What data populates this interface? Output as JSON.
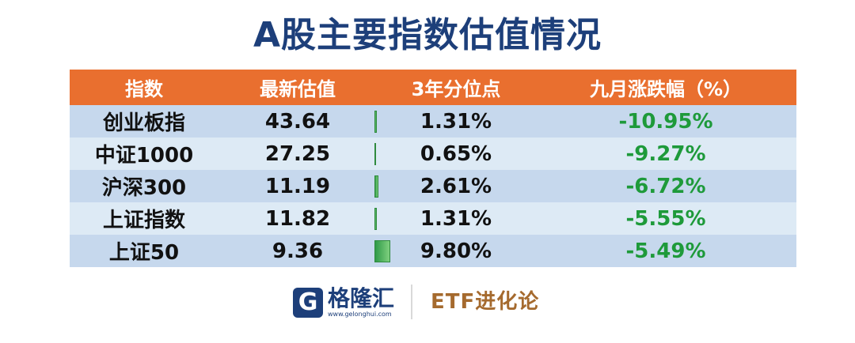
{
  "title": "A股主要指数估值情况",
  "table": {
    "headers": [
      "指数",
      "最新估值",
      "3年分位点",
      "九月涨跌幅（%）"
    ],
    "rows": [
      {
        "name": "创业板指",
        "valuation": "43.64",
        "percentile": "1.31%",
        "percentile_value": 1.31,
        "change": "-10.95%"
      },
      {
        "name": "中证1000",
        "valuation": "27.25",
        "percentile": "0.65%",
        "percentile_value": 0.65,
        "change": "-9.27%"
      },
      {
        "name": "沪深300",
        "valuation": "11.19",
        "percentile": "2.61%",
        "percentile_value": 2.61,
        "change": "-6.72%"
      },
      {
        "name": "上证指数",
        "valuation": "11.82",
        "percentile": "1.31%",
        "percentile_value": 1.31,
        "change": "-5.55%"
      },
      {
        "name": "上证50",
        "valuation": "9.36",
        "percentile": "9.80%",
        "percentile_value": 9.8,
        "change": "-5.49%"
      }
    ]
  },
  "colors": {
    "title": "#1d3f7a",
    "header_bg": "#e96f2f",
    "row_dark": "#c6d8ed",
    "row_light": "#ddeaf5",
    "negative": "#1e9a3a"
  },
  "footer": {
    "logo_icon": "gelonghui-logo-icon",
    "logo_text": "格隆汇",
    "logo_url": "www.gelonghui.com",
    "brand": "ETF进化论"
  }
}
